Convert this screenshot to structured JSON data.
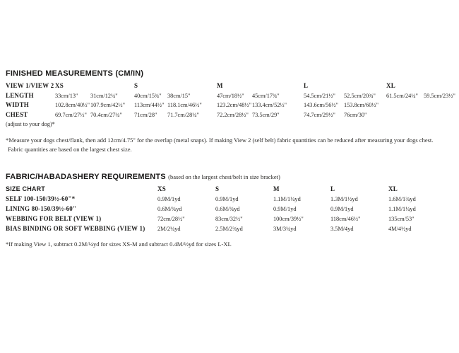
{
  "measurements": {
    "heading": "FINISHED MEASUREMENTS (CM/IN)",
    "view_label": "VIEW 1/VIEW 2",
    "sizes": [
      "XS",
      "S",
      "M",
      "L",
      "XL"
    ],
    "rows": [
      {
        "label": "LENGTH",
        "values": [
          [
            "33cm/13\"",
            "31cm/12¼\""
          ],
          [
            "40cm/15¾\"",
            "38cm/15\""
          ],
          [
            "47cm/18½\"",
            "45cm/17¾\""
          ],
          [
            "54.5cm/21½\"",
            "52.5cm/20¾\""
          ],
          [
            "61.5cm/24¼\"",
            "59.5cm/23½\""
          ]
        ]
      },
      {
        "label": "WIDTH",
        "values": [
          [
            "102.8cm/40½\"",
            "107.9cm/42½\""
          ],
          [
            "113cm/44½\"",
            "118.1cm/46½\""
          ],
          [
            "123.2cm/48½\"",
            "133.4cm/52½\""
          ],
          [
            "143.6cm/56½\"",
            "153.8cm/60½\""
          ],
          [
            "",
            ""
          ]
        ]
      },
      {
        "label": "CHEST",
        "values": [
          [
            "69.7cm/27½\"",
            "70.4cm/27¾\""
          ],
          [
            "71cm/28\"",
            "71.7cm/28¼\""
          ],
          [
            "72.2cm/28½\"",
            "73.5cm/29\""
          ],
          [
            "74.7cm/29½\"",
            "76cm/30\""
          ],
          [
            "",
            ""
          ]
        ]
      }
    ],
    "adjust_note": "(adjust to your dog)*",
    "footnote_line1": "*Measure your dogs chest/flank, then add 12cm/4.75\" for the overlap (metal snaps). If making View 2 (self belt) fabric quantities can be reduced after measuring your dogs chest.",
    "footnote_line2": "Fabric quantities are based on the largest chest size."
  },
  "fabric": {
    "heading": "FABRIC/HABADASHERY REQUIREMENTS",
    "heading_note": "(based on the largest chest/belt in size bracket)",
    "header_label": "SIZE CHART",
    "sizes": [
      "XS",
      "S",
      "M",
      "L",
      "XL"
    ],
    "rows": [
      {
        "label": "SELF 100-150/39½-60\"*",
        "values": [
          "0.9M/1yd",
          "0.9M/1yd",
          "1.1M/1¼yd",
          "1.3M/1½yd",
          "1.6M/1¾yd"
        ]
      },
      {
        "label": "LINING 80-150/39½-60\"",
        "values": [
          "0.6M/¾yd",
          "0.6M/¾yd",
          "0.9M/1yd",
          "0.9M/1yd",
          "1.1M/1¼yd"
        ]
      },
      {
        "label": "WEBBING FOR BELT (VIEW 1)",
        "values": [
          "72cm/28½\"",
          "83cm/32½\"",
          "100cm/39½\"",
          "118cm/46½\"",
          "135cm/53\""
        ]
      },
      {
        "label": "BIAS BINDING OR SOFT WEBBING (VIEW 1)",
        "values": [
          "2M/2¼yd",
          "2.5M/2¾yd",
          "3M/3¼yd",
          "3.5M/4yd",
          "4M/4½yd"
        ]
      }
    ],
    "footnote": "*If making View 1, subtract 0.2M/¼yd for sizes XS-M and subtract 0.4M/½yd for sizes L-XL"
  }
}
